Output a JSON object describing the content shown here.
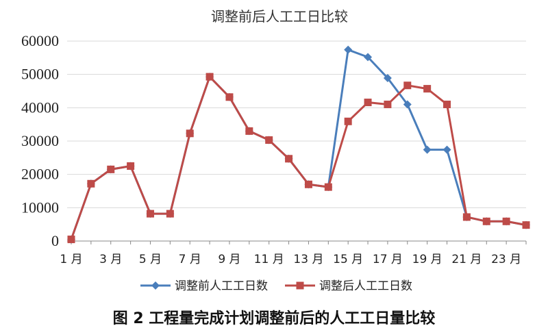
{
  "chart_data": {
    "type": "line",
    "title": "调整前后人工工日比较",
    "caption": "图 2   工程量完成计划调整前后的人工工日量比较",
    "x": [
      1,
      2,
      3,
      4,
      5,
      6,
      7,
      8,
      9,
      10,
      11,
      12,
      13,
      14,
      15,
      16,
      17,
      18,
      19,
      20,
      21,
      22,
      23,
      24
    ],
    "x_tick_labels": [
      "1 月",
      "3 月",
      "5 月",
      "7 月",
      "9 月",
      "11 月",
      "13 月",
      "15 月",
      "17 月",
      "19 月",
      "21 月",
      "23 月"
    ],
    "x_tick_values": [
      1,
      3,
      5,
      7,
      9,
      11,
      13,
      15,
      17,
      19,
      21,
      23
    ],
    "y_tick_labels": [
      "0",
      "10000",
      "20000",
      "30000",
      "40000",
      "50000",
      "60000"
    ],
    "y_tick_values": [
      0,
      10000,
      20000,
      30000,
      40000,
      50000,
      60000
    ],
    "ylim": [
      0,
      60000
    ],
    "xlim": [
      1,
      24
    ],
    "grid": true,
    "legend_position": "bottom",
    "series": [
      {
        "name": "调整前人工工日数",
        "color": "#4a7ebb",
        "marker": "diamond",
        "values": [
          500,
          17200,
          21500,
          22500,
          8200,
          8200,
          32300,
          49300,
          43200,
          33000,
          30300,
          24700,
          17000,
          16200,
          57400,
          55200,
          48900,
          41000,
          27400,
          27400,
          7200,
          5900,
          5900,
          4800
        ]
      },
      {
        "name": "调整后人工工日数",
        "color": "#be4b48",
        "marker": "square",
        "values": [
          500,
          17200,
          21500,
          22500,
          8200,
          8200,
          32300,
          49300,
          43200,
          33000,
          30300,
          24700,
          17000,
          16200,
          35900,
          41600,
          41000,
          46700,
          45700,
          41000,
          7200,
          5900,
          5900,
          4800
        ]
      }
    ]
  }
}
